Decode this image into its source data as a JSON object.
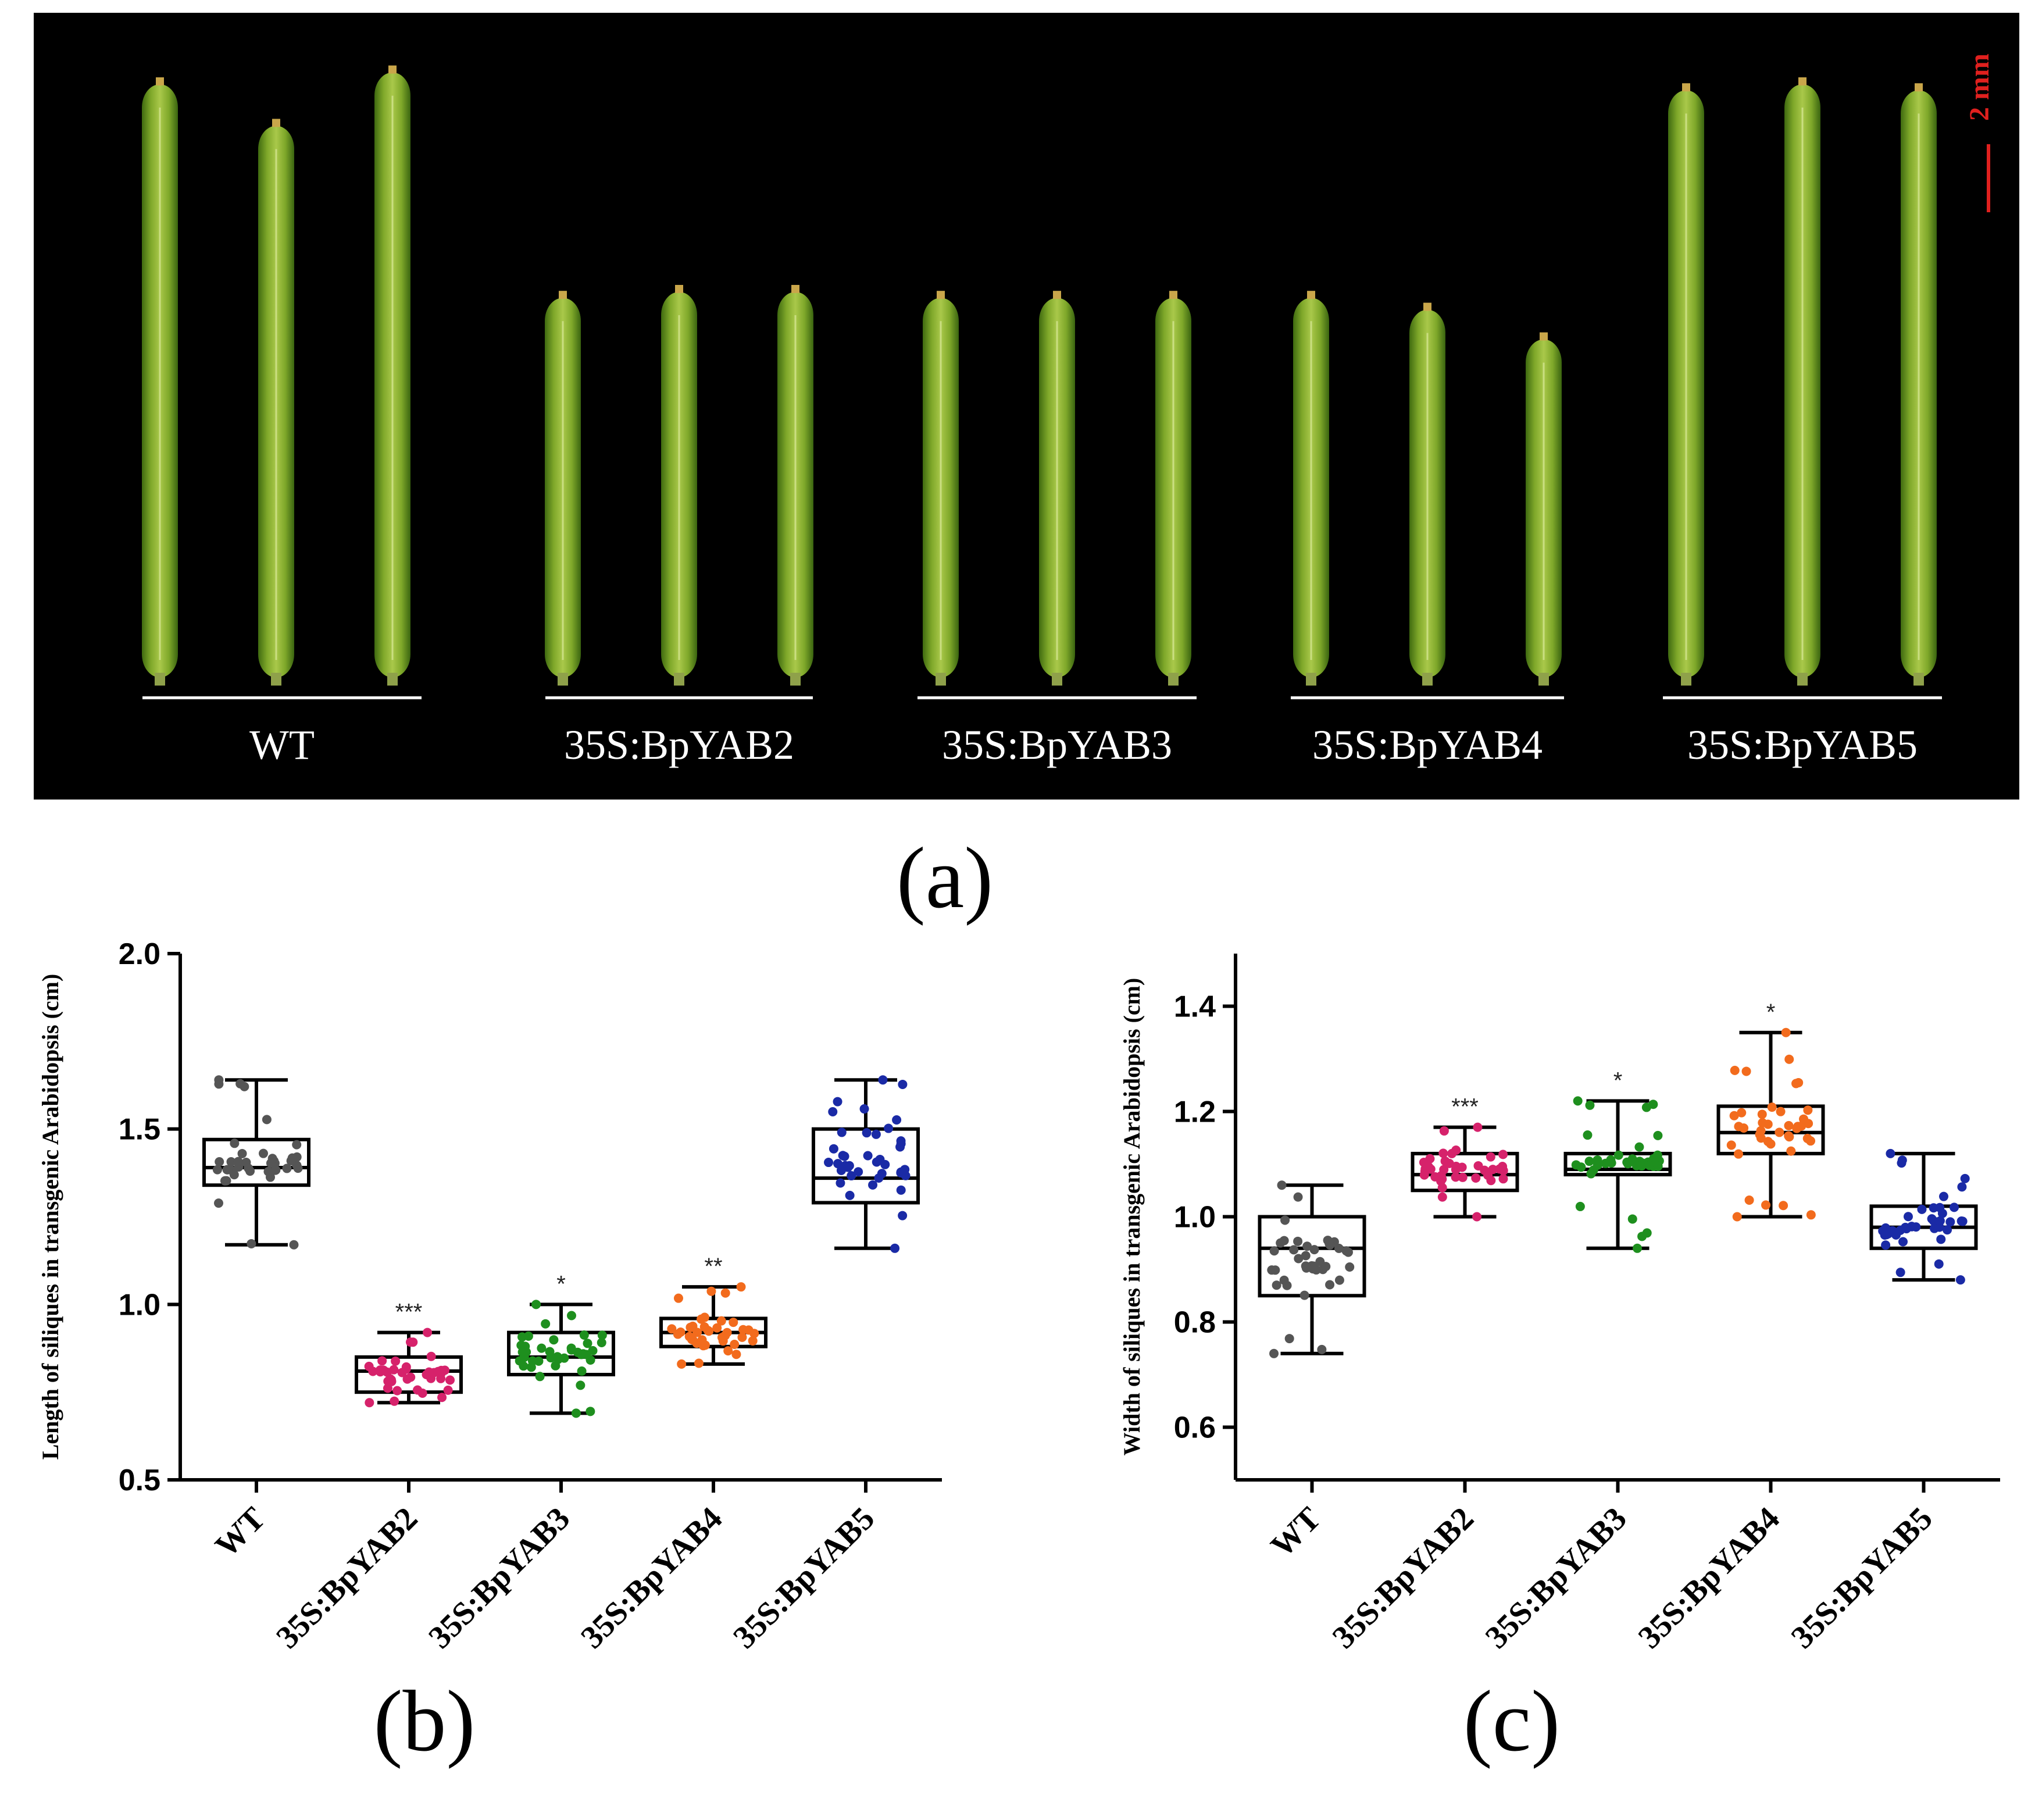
{
  "panel_a": {
    "scale_bar_label": "2 mm",
    "scale_bar_color": "#e0201e",
    "background_color": "#000000",
    "groups": [
      {
        "label": "WT",
        "silique_lengths_rel": [
          1.0,
          0.93,
          1.02
        ]
      },
      {
        "label": "35S:BpYAB2",
        "silique_lengths_rel": [
          0.64,
          0.65,
          0.65
        ]
      },
      {
        "label": "35S:BpYAB3",
        "silique_lengths_rel": [
          0.64,
          0.64,
          0.64
        ]
      },
      {
        "label": "35S:BpYAB4",
        "silique_lengths_rel": [
          0.64,
          0.62,
          0.57
        ]
      },
      {
        "label": "35S:BpYAB5",
        "silique_lengths_rel": [
          0.99,
          1.0,
          0.99
        ]
      }
    ],
    "panel_label": "(a)"
  },
  "chart_data": [
    {
      "type": "box",
      "panel_label": "(b)",
      "ylabel": "Length of siliques in transgenic Arabidopsis (cm)",
      "xlabel": "",
      "ylim": [
        0.5,
        2.0
      ],
      "yticks": [
        "0.5",
        "1.0",
        "1.5",
        "2.0"
      ],
      "categories": [
        "WT",
        "35S:BpYAB2",
        "35S:BpYAB3",
        "35S:BpYAB4",
        "35S:BpYAB5"
      ],
      "colors": [
        "#555555",
        "#d6226b",
        "#1e8f1e",
        "#f26b1d",
        "#1a2aa6"
      ],
      "significance": [
        "",
        "***",
        "*",
        "**",
        ""
      ],
      "boxes": [
        {
          "min": 1.17,
          "q1": 1.34,
          "median": 1.39,
          "q3": 1.47,
          "max": 1.64,
          "n": 40
        },
        {
          "min": 0.72,
          "q1": 0.75,
          "median": 0.81,
          "q3": 0.85,
          "max": 0.92,
          "n": 40
        },
        {
          "min": 0.69,
          "q1": 0.8,
          "median": 0.85,
          "q3": 0.92,
          "max": 1.0,
          "n": 40
        },
        {
          "min": 0.83,
          "q1": 0.88,
          "median": 0.92,
          "q3": 0.96,
          "max": 1.05,
          "n": 40
        },
        {
          "min": 1.16,
          "q1": 1.29,
          "median": 1.36,
          "q3": 1.5,
          "max": 1.64,
          "n": 40
        }
      ]
    },
    {
      "type": "box",
      "panel_label": "(c)",
      "ylabel": "Width of siliques in transgenic Arabidopsis (cm)",
      "xlabel": "",
      "ylim": [
        0.5,
        1.5
      ],
      "yticks": [
        "0.6",
        "0.8",
        "1.0",
        "1.2",
        "1.4"
      ],
      "categories": [
        "WT",
        "35S:BpYAB2",
        "35S:BpYAB3",
        "35S:BpYAB4",
        "35S:BpYAB5"
      ],
      "colors": [
        "#555555",
        "#d6226b",
        "#1e8f1e",
        "#f26b1d",
        "#1a2aa6"
      ],
      "significance": [
        "",
        "***",
        "*",
        "*",
        ""
      ],
      "boxes": [
        {
          "min": 0.74,
          "q1": 0.85,
          "median": 0.94,
          "q3": 1.0,
          "max": 1.06,
          "n": 40
        },
        {
          "min": 1.0,
          "q1": 1.05,
          "median": 1.08,
          "q3": 1.12,
          "max": 1.17,
          "n": 40
        },
        {
          "min": 0.94,
          "q1": 1.08,
          "median": 1.09,
          "q3": 1.12,
          "max": 1.22,
          "n": 40
        },
        {
          "min": 1.0,
          "q1": 1.12,
          "median": 1.16,
          "q3": 1.21,
          "max": 1.35,
          "n": 40
        },
        {
          "min": 0.88,
          "q1": 0.94,
          "median": 0.98,
          "q3": 1.02,
          "max": 1.12,
          "n": 40
        }
      ]
    }
  ]
}
